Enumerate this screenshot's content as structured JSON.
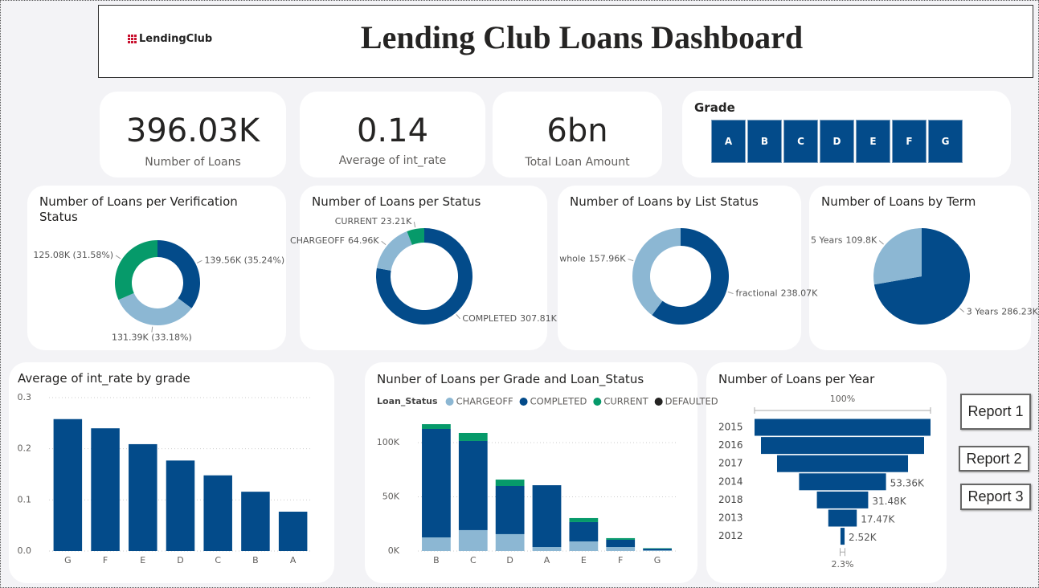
{
  "header": {
    "logo": "LendingClub",
    "title": "Lending Club Loans Dashboard"
  },
  "kpis": [
    {
      "value": "396.03K",
      "label": "Number of Loans"
    },
    {
      "value": "0.14",
      "label": "Average of int_rate"
    },
    {
      "value": "6bn",
      "label": "Total Loan Amount"
    }
  ],
  "slicer": {
    "title": "Grade",
    "options": [
      "A",
      "B",
      "C",
      "D",
      "E",
      "F",
      "G"
    ]
  },
  "buttons": [
    "Report 1",
    "Report 2",
    "Report 3"
  ],
  "chart_data": [
    {
      "type": "donut",
      "title": "Number of Loans per Verification Status",
      "values": [
        139560,
        131390,
        125080
      ],
      "value_labels": [
        "139.56K (35.24%)",
        "131.39K (33.18%)",
        "125.08K (31.58%)"
      ],
      "colors": [
        "#034b8a",
        "#8cb7d3",
        "#069a6a"
      ]
    },
    {
      "type": "donut",
      "title": "Number of Loans per Status",
      "categories": [
        "COMPLETED",
        "CHARGEOFF",
        "CURRENT"
      ],
      "values": [
        307810,
        64960,
        23210
      ],
      "value_labels": [
        "307.81K",
        "64.96K",
        "23.21K"
      ],
      "colors": [
        "#034b8a",
        "#8cb7d3",
        "#069a6a"
      ]
    },
    {
      "type": "donut",
      "title": "Number of Loans by List Status",
      "categories": [
        "fractional",
        "whole"
      ],
      "values": [
        238070,
        157960
      ],
      "value_labels": [
        "238.07K",
        "157.96K"
      ],
      "colors": [
        "#034b8a",
        "#8cb7d3"
      ]
    },
    {
      "type": "pie",
      "title": "Number of Loans by Term",
      "categories": [
        "3 Years",
        "5 Years"
      ],
      "values": [
        286230,
        109800
      ],
      "value_labels": [
        "286.23K",
        "109.8K"
      ],
      "colors": [
        "#034b8a",
        "#8cb7d3"
      ]
    },
    {
      "type": "bar",
      "title": "Average of int_rate by grade",
      "categories": [
        "G",
        "F",
        "E",
        "D",
        "C",
        "B",
        "A"
      ],
      "values": [
        0.258,
        0.24,
        0.209,
        0.177,
        0.148,
        0.116,
        0.077
      ],
      "color": "#034b8a",
      "ylim": [
        0,
        0.3
      ],
      "yticks": [
        {
          "value": 0,
          "label": "0.0"
        },
        0.1,
        0.2,
        0.3
      ],
      "grid": true
    },
    {
      "type": "stacked_bar",
      "title": "Nunber of Loans per Grade and Loan_Status",
      "legend_title": "Loan_Status",
      "categories": [
        "B",
        "C",
        "D",
        "A",
        "E",
        "F",
        "G"
      ],
      "series": [
        {
          "name": "CHARGEOFF",
          "color": "#8cb7d3",
          "values": [
            12600,
            19300,
            15600,
            3700,
            8900,
            3700,
            700
          ]
        },
        {
          "name": "COMPLETED",
          "color": "#034b8a",
          "values": [
            100000,
            82200,
            44400,
            57000,
            17800,
            6700,
            1500
          ]
        },
        {
          "name": "CURRENT",
          "color": "#069a6a",
          "values": [
            4400,
            7400,
            5900,
            0,
            3700,
            1500,
            400
          ]
        },
        {
          "name": "DEFAULTED",
          "color": "#252423",
          "values": [
            0,
            0,
            0,
            0,
            0,
            0,
            0
          ]
        }
      ],
      "ylim": [
        0,
        120000
      ],
      "yticks": [
        {
          "value": 0,
          "label": "0K"
        },
        {
          "value": 50000,
          "label": "50K"
        },
        {
          "value": 100000,
          "label": "100K"
        }
      ],
      "grid": true
    },
    {
      "type": "funnel",
      "title": "Number of Loans per Year",
      "categories": [
        "2015",
        "2016",
        "2017",
        "2014",
        "2018",
        "2013",
        "2012"
      ],
      "values": [
        108000,
        100100,
        80400,
        53360,
        31480,
        17470,
        2520
      ],
      "value_labels": [
        null,
        null,
        null,
        "53.36K",
        "31.48K",
        "17.47K",
        "2.52K"
      ],
      "annotations": [
        "100%",
        "2.3%"
      ],
      "color": "#034b8a"
    }
  ]
}
